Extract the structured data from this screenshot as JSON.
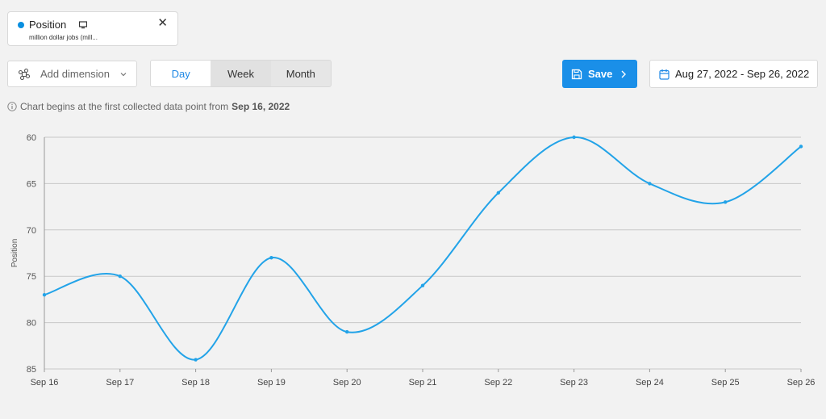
{
  "series_chip": {
    "title": "Position",
    "subtitle": "million dollar jobs (mill...",
    "close": "✕",
    "dot_color": "#0a8fe0",
    "device_icon": "desktop-icon"
  },
  "toolbar": {
    "add_dimension": "Add dimension",
    "granularity": [
      "Day",
      "Week",
      "Month"
    ],
    "selected_granularity": "Day",
    "save": "Save",
    "date_range": "Aug 27, 2022 - Sep 26, 2022"
  },
  "note": {
    "text": "Chart begins at the first collected data point from",
    "date": "Sep 16, 2022"
  },
  "chart_data": {
    "type": "line",
    "x": [
      "Sep 16",
      "Sep 17",
      "Sep 18",
      "Sep 19",
      "Sep 20",
      "Sep 21",
      "Sep 22",
      "Sep 23",
      "Sep 24",
      "Sep 25",
      "Sep 26"
    ],
    "series": [
      {
        "values": [
          77,
          75,
          84,
          73,
          81,
          76,
          66,
          60,
          65,
          67,
          61
        ],
        "color": "#22a3e8"
      }
    ],
    "ylabel": "Position",
    "yticks": [
      60,
      65,
      70,
      75,
      80,
      85
    ],
    "ylim": [
      60,
      85
    ],
    "y_inverted": true,
    "grid": true,
    "accent": "#22a3e8"
  }
}
